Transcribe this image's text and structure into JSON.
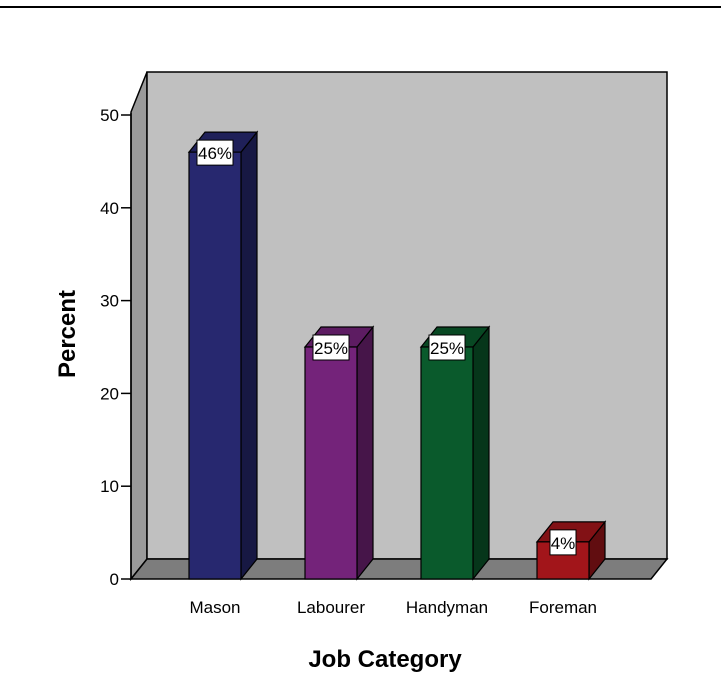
{
  "chart_data": {
    "type": "bar",
    "categories": [
      "Mason",
      "Labourer",
      "Handyman",
      "Foreman"
    ],
    "values": [
      46,
      25,
      25,
      4
    ],
    "data_labels": [
      "46%",
      "25%",
      "25%",
      "4%"
    ],
    "xlabel": "Job Category",
    "ylabel": "Percent",
    "ylim": [
      0,
      50
    ],
    "yticks": [
      "0",
      "10",
      "20",
      "30",
      "40",
      "50"
    ],
    "colors": [
      "#27286f",
      "#74237a",
      "#0a5a2c",
      "#a2151a"
    ],
    "plot_background": "#c0c0c0",
    "grid": false,
    "style": "3d"
  }
}
